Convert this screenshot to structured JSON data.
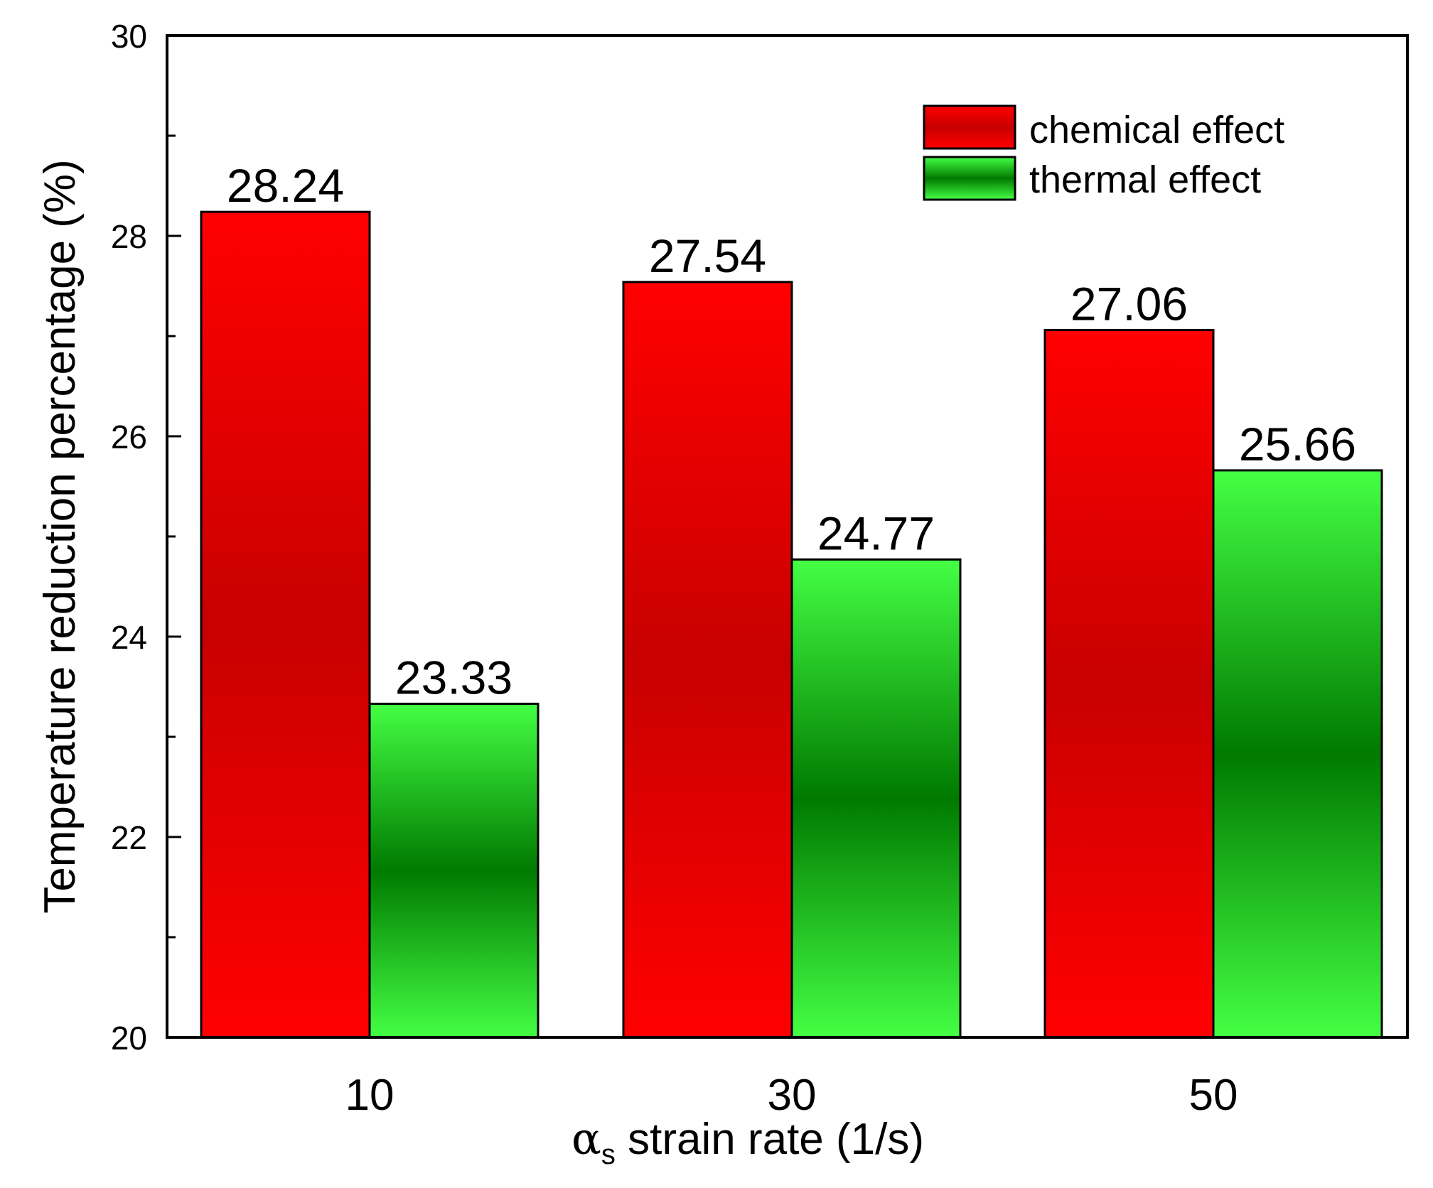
{
  "chart_data": {
    "type": "bar",
    "categories": [
      "10",
      "30",
      "50"
    ],
    "series": [
      {
        "name": "chemical effect",
        "values": [
          28.24,
          27.54,
          27.06
        ],
        "value_labels": [
          "28.24",
          "27.54",
          "27.06"
        ]
      },
      {
        "name": "thermal effect",
        "values": [
          23.33,
          24.77,
          25.66
        ],
        "value_labels": [
          "23.33",
          "24.77",
          "25.66"
        ]
      }
    ],
    "xlabel": {
      "symbol": "α",
      "subscript": "s",
      "text": " strain rate (1/s)"
    },
    "ylabel": "Temperature reduction percentage (%)",
    "ylim": [
      20,
      30
    ],
    "yticks": [
      20,
      22,
      24,
      26,
      28,
      30
    ],
    "ytick_labels": [
      "20",
      "22",
      "24",
      "26",
      "28",
      "30"
    ],
    "grid": false,
    "legend_position": "top-right",
    "colors": {
      "chemical_edge": "#ff0000",
      "chemical_center": "#c80000",
      "thermal_edge": "#44ff44",
      "thermal_center": "#007a00"
    }
  }
}
